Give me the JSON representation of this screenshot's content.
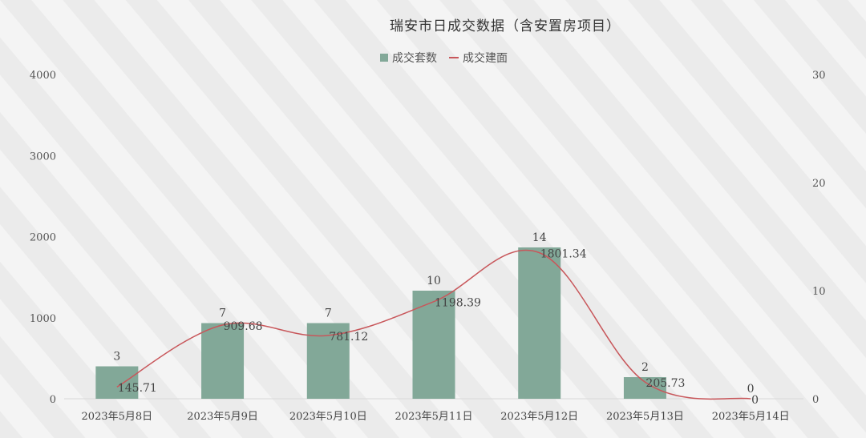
{
  "chart_data": {
    "type": "bar",
    "title": "瑞安市日成交数据（含安置房项目）",
    "categories": [
      "2023年5月8日",
      "2023年5月9日",
      "2023年5月10日",
      "2023年5月11日",
      "2023年5月12日",
      "2023年5月13日",
      "2023年5月14日"
    ],
    "series": [
      {
        "name": "成交套数",
        "type": "bar",
        "axis": "right",
        "values": [
          3,
          7,
          7,
          10,
          14,
          2,
          0
        ],
        "labels": [
          "3",
          "7",
          "7",
          "10",
          "14",
          "2",
          "0"
        ],
        "color": "#82a898"
      },
      {
        "name": "成交建面",
        "type": "line",
        "axis": "left",
        "smooth": true,
        "values": [
          145.71,
          909.68,
          781.12,
          1198.39,
          1801.34,
          205.73,
          0
        ],
        "labels": [
          "145.71",
          "909.68",
          "781.12",
          "1198.39",
          "1801.34",
          "205.73",
          "0"
        ],
        "color": "#c8575b"
      }
    ],
    "y_left": {
      "min": 0,
      "max": 4000,
      "ticks": [
        "0",
        "1000",
        "2000",
        "3000",
        "4000"
      ]
    },
    "y_right": {
      "min": 0,
      "max": 30,
      "ticks": [
        "0",
        "10",
        "20",
        "30"
      ]
    },
    "grid": false,
    "legend_position": "top-center",
    "background": "diagonal-stripes"
  }
}
